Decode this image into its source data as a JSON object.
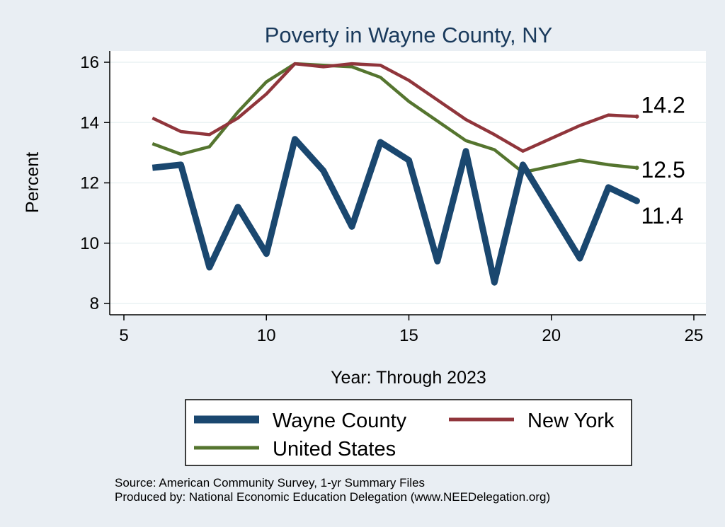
{
  "chart_data": {
    "type": "line",
    "title": "Poverty in Wayne County, NY",
    "xlabel": "Year: Through 2023",
    "ylabel": "Percent",
    "xlim": [
      5,
      25
    ],
    "ylim": [
      8,
      16
    ],
    "xticks": [
      5,
      10,
      15,
      20,
      25
    ],
    "yticks": [
      8,
      10,
      12,
      14,
      16
    ],
    "grid": true,
    "legend_position": "bottom",
    "series": [
      {
        "name": "Wayne County",
        "color": "#1a476f",
        "points": [
          [
            6,
            12.5
          ],
          [
            7,
            12.6
          ],
          [
            8,
            9.2
          ],
          [
            9,
            11.2
          ],
          [
            10,
            9.65
          ],
          [
            11,
            13.45
          ],
          [
            12,
            12.4
          ],
          [
            13,
            10.55
          ],
          [
            14,
            13.35
          ],
          [
            15,
            12.75
          ],
          [
            16,
            9.4
          ],
          [
            17,
            13.05
          ],
          [
            18,
            8.7
          ],
          [
            19,
            12.6
          ],
          [
            21,
            9.5
          ],
          [
            22,
            11.85
          ],
          [
            23,
            11.4
          ]
        ],
        "end_label": "11.4"
      },
      {
        "name": "New York",
        "color": "#90353b",
        "points": [
          [
            6,
            14.15
          ],
          [
            7,
            13.7
          ],
          [
            8,
            13.6
          ],
          [
            9,
            14.15
          ],
          [
            10,
            14.95
          ],
          [
            11,
            15.95
          ],
          [
            12,
            15.85
          ],
          [
            13,
            15.95
          ],
          [
            14,
            15.9
          ],
          [
            15,
            15.4
          ],
          [
            16,
            14.75
          ],
          [
            17,
            14.1
          ],
          [
            18,
            13.6
          ],
          [
            19,
            13.05
          ],
          [
            21,
            13.9
          ],
          [
            22,
            14.25
          ],
          [
            23,
            14.2
          ]
        ],
        "end_label": "14.2"
      },
      {
        "name": "United States",
        "color": "#55752f",
        "points": [
          [
            6,
            13.3
          ],
          [
            7,
            12.95
          ],
          [
            8,
            13.2
          ],
          [
            9,
            14.35
          ],
          [
            10,
            15.35
          ],
          [
            11,
            15.95
          ],
          [
            12,
            15.9
          ],
          [
            13,
            15.85
          ],
          [
            14,
            15.5
          ],
          [
            15,
            14.7
          ],
          [
            16,
            14.05
          ],
          [
            17,
            13.4
          ],
          [
            18,
            13.1
          ],
          [
            19,
            12.35
          ],
          [
            21,
            12.75
          ],
          [
            22,
            12.6
          ],
          [
            23,
            12.5
          ]
        ],
        "end_label": "12.5"
      }
    ]
  },
  "legend": {
    "items": [
      "Wayne County",
      "New York",
      "United States"
    ]
  },
  "notes": {
    "source": "Source: American Community Survey, 1-yr Summary Files",
    "produced": "Produced by: National Economic Education Delegation (www.NEEDelegation.org)"
  }
}
